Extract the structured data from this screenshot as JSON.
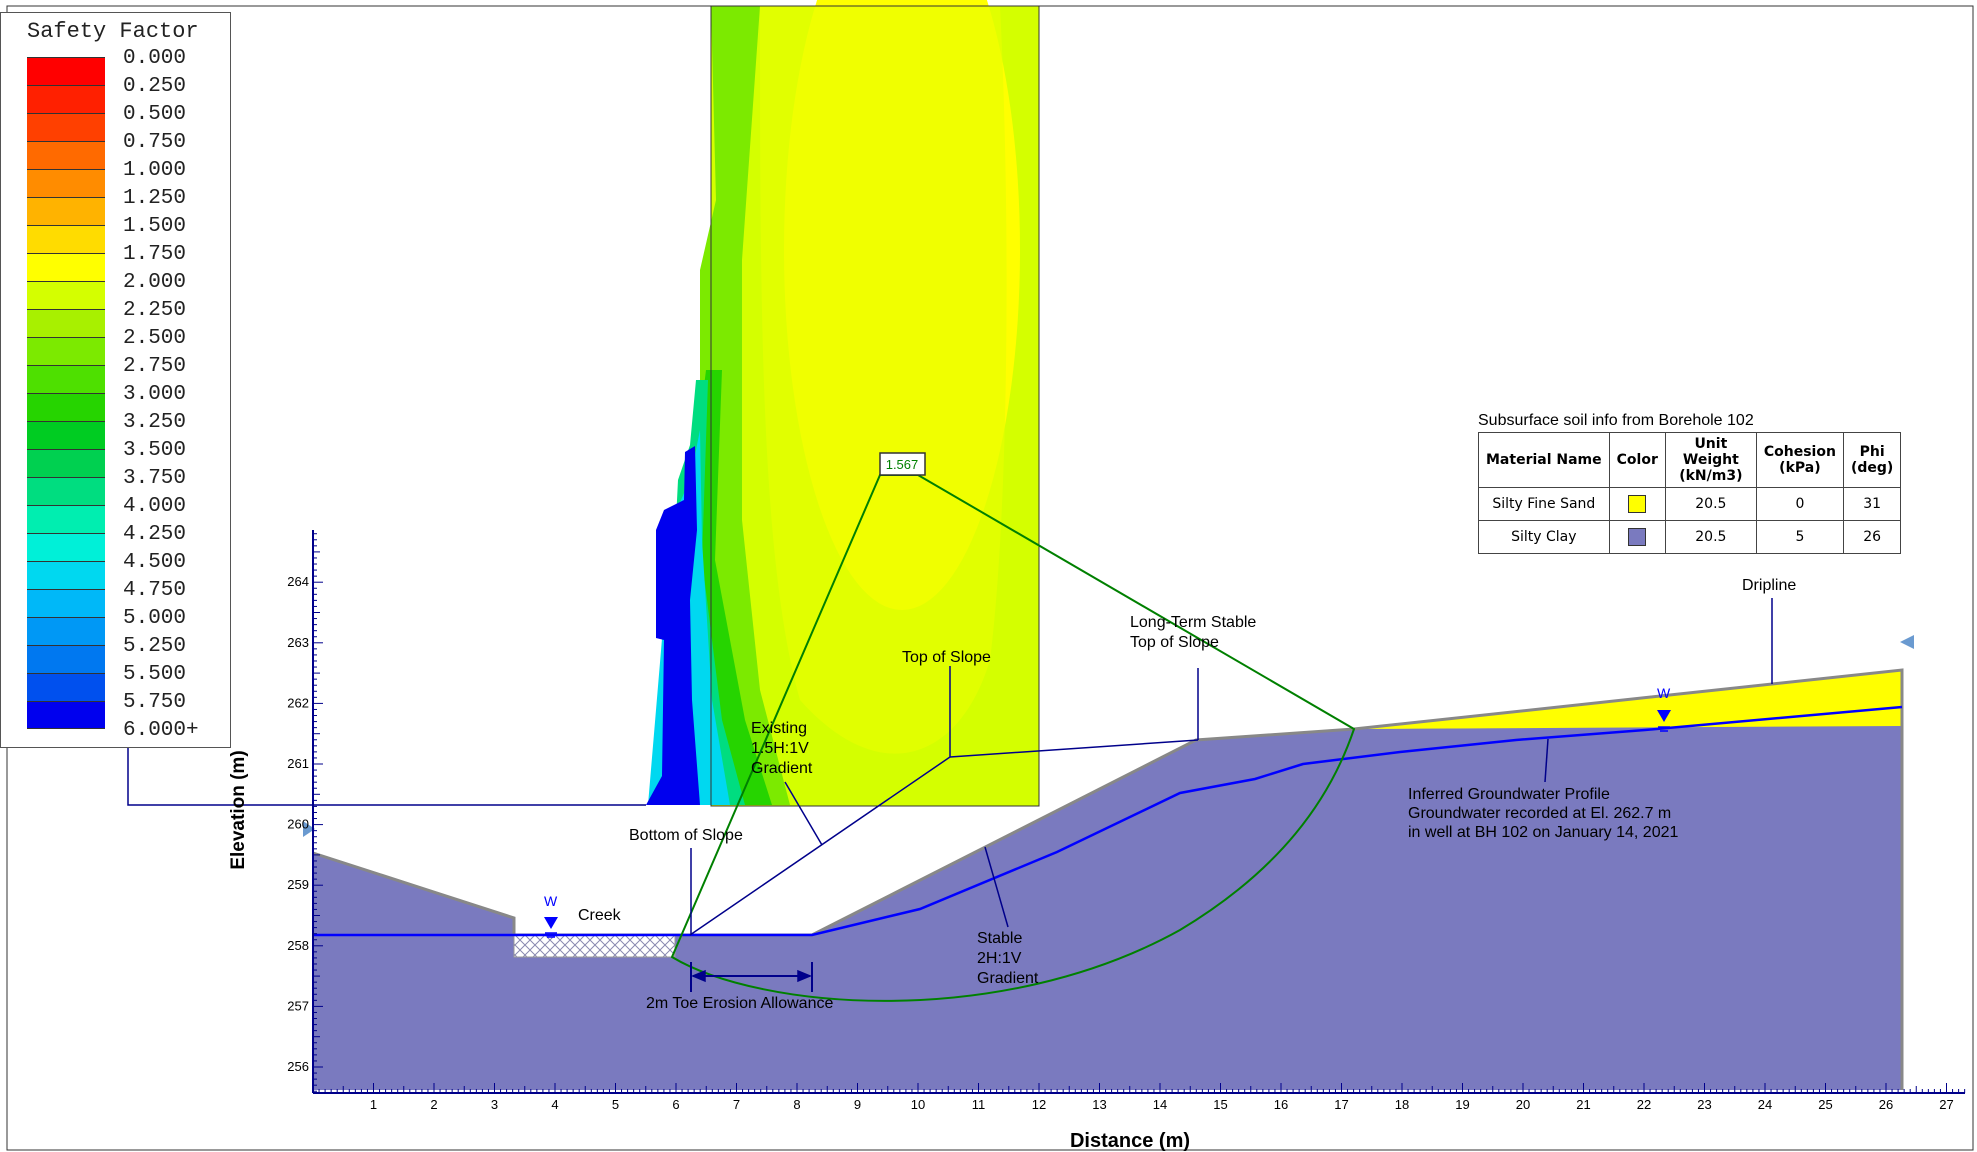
{
  "legend": {
    "title": "Safety Factor",
    "labels": [
      "0.000",
      "0.250",
      "0.500",
      "0.750",
      "1.000",
      "1.250",
      "1.500",
      "1.750",
      "2.000",
      "2.250",
      "2.500",
      "2.750",
      "3.000",
      "3.250",
      "3.500",
      "3.750",
      "4.000",
      "4.250",
      "4.500",
      "4.750",
      "5.000",
      "5.250",
      "5.500",
      "5.750",
      "6.000+"
    ],
    "colors": [
      "#ff0000",
      "#ff2000",
      "#ff4000",
      "#ff6a00",
      "#ff8c00",
      "#ffb300",
      "#ffdc00",
      "#ffff00",
      "#d4ff00",
      "#a8f000",
      "#7cea00",
      "#4ee000",
      "#26d400",
      "#00cc22",
      "#00d050",
      "#00dd80",
      "#00eeb0",
      "#00f0d8",
      "#00d8f0",
      "#00b8f8",
      "#0098f5",
      "#0078f0",
      "#0050ee",
      "#0000ee"
    ]
  },
  "soil_table": {
    "title": "Subsurface soil info from Borehole 102",
    "headers": [
      "Material Name",
      "Color",
      "Unit Weight (kN/m3)",
      "Cohesion (kPa)",
      "Phi (deg)"
    ],
    "rows": [
      {
        "name": "Silty Fine Sand",
        "color": "#ffff00",
        "unit_weight": "20.5",
        "cohesion": "0",
        "phi": "31"
      },
      {
        "name": "Silty Clay",
        "color": "#7a7abf",
        "unit_weight": "20.5",
        "cohesion": "5",
        "phi": "26"
      }
    ]
  },
  "axes": {
    "x_title": "Distance (m)",
    "y_title": "Elevation (m)",
    "x_ticks": [
      "1",
      "2",
      "3",
      "4",
      "5",
      "6",
      "7",
      "8",
      "9",
      "10",
      "11",
      "12",
      "13",
      "14",
      "15",
      "16",
      "17",
      "18",
      "19",
      "20",
      "21",
      "22",
      "23",
      "24",
      "25",
      "26",
      "27"
    ],
    "y_ticks": [
      "256",
      "257",
      "258",
      "259",
      "260",
      "261",
      "262",
      "263",
      "264"
    ],
    "x_range": [
      0,
      27.3
    ],
    "y_range": [
      255.6,
      265
    ]
  },
  "annotations": {
    "fs_value": "1.567",
    "top_of_slope": "Top of Slope",
    "long_term_line1": "Long-Term Stable",
    "long_term_line2": "Top of Slope",
    "dripline": "Dripline",
    "existing_line1": "Existing",
    "existing_line2": "1.5H:1V",
    "existing_line3": "Gradient",
    "bottom_of_slope": "Bottom of Slope",
    "creek": "Creek",
    "water_marker": "W",
    "stable_line1": "Stable",
    "stable_line2": "2H:1V",
    "stable_line3": "Gradient",
    "groundwater_line1": "Inferred Groundwater Profile",
    "groundwater_line2": "Groundwater recorded at El. 262.7 m",
    "groundwater_line3": "in well at BH 102 on January 14, 2021",
    "toe_erosion": "2m Toe Erosion Allowance"
  },
  "colors": {
    "clay": "#7a7abf",
    "sand": "#ffff00",
    "water_line": "#0000ff",
    "slip_surface": "#008000",
    "annotation_line": "#00008b"
  }
}
